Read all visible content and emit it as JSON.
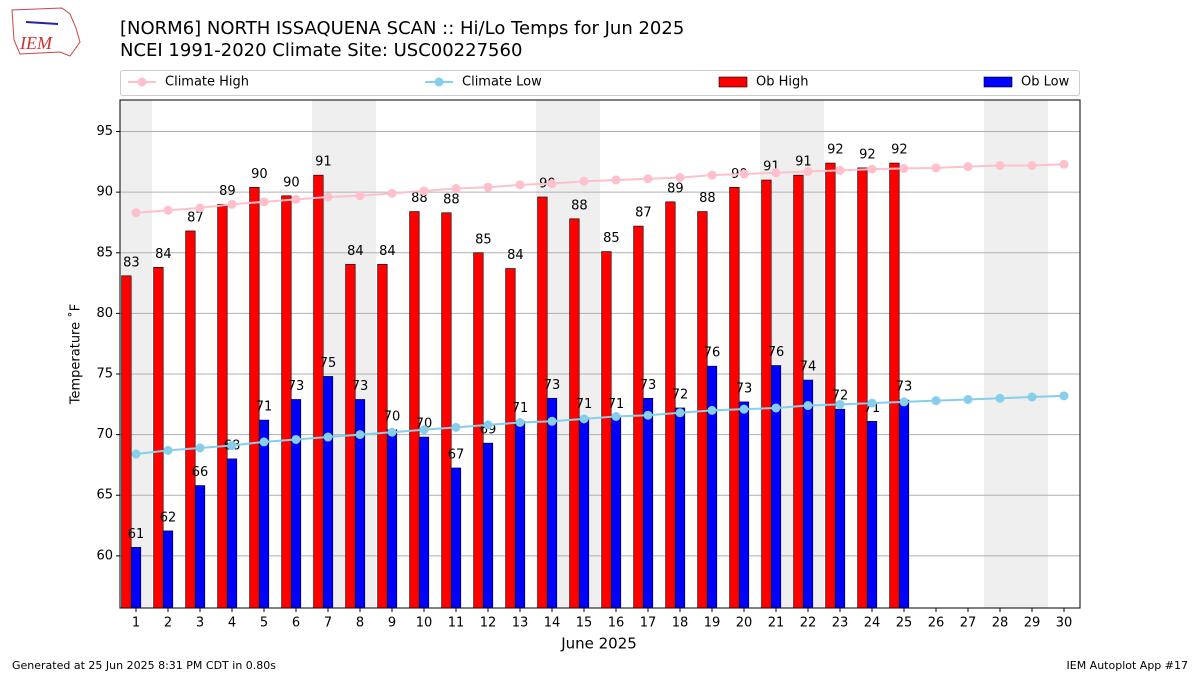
{
  "logo": "IEM",
  "footer": {
    "left": "Generated at 25 Jun 2025 8:31 PM CDT in 0.80s",
    "right": "IEM Autoplot App #17"
  },
  "chart_data": {
    "type": "bar",
    "title": "[NORM6] NORTH ISSAQUENA SCAN :: Hi/Lo Temps for Jun 2025",
    "subtitle": "NCEI 1991-2020 Climate Site: USC00227560",
    "x_label": "June 2025",
    "y_label": "Temperature ˚F",
    "categories": [
      "1",
      "2",
      "3",
      "4",
      "5",
      "6",
      "7",
      "8",
      "9",
      "10",
      "11",
      "12",
      "13",
      "14",
      "15",
      "16",
      "17",
      "18",
      "19",
      "20",
      "21",
      "22",
      "23",
      "24",
      "25",
      "26",
      "27",
      "28",
      "29",
      "30"
    ],
    "shaded_categories": [
      0,
      6,
      7,
      13,
      14,
      20,
      21,
      27,
      28
    ],
    "shade_color": "#efefef",
    "ylim": [
      55.7,
      97.6
    ],
    "yticks": [
      60,
      65,
      70,
      75,
      80,
      85,
      90,
      95
    ],
    "grid": true,
    "series": [
      {
        "name": "Climate High",
        "type": "line",
        "color": "#ffc0cb",
        "values": [
          88.3,
          88.5,
          88.7,
          89.0,
          89.2,
          89.4,
          89.6,
          89.7,
          89.9,
          90.1,
          90.3,
          90.4,
          90.6,
          90.7,
          90.9,
          91.0,
          91.1,
          91.2,
          91.4,
          91.5,
          91.6,
          91.7,
          91.8,
          91.9,
          91.95,
          92.0,
          92.1,
          92.2,
          92.2,
          92.3
        ]
      },
      {
        "name": "Climate Low",
        "type": "line",
        "color": "#87ceeb",
        "values": [
          68.4,
          68.7,
          68.9,
          69.1,
          69.4,
          69.6,
          69.8,
          70.0,
          70.2,
          70.4,
          70.6,
          70.8,
          71.0,
          71.1,
          71.3,
          71.5,
          71.6,
          71.8,
          72.0,
          72.1,
          72.2,
          72.4,
          72.5,
          72.6,
          72.7,
          72.8,
          72.9,
          73.0,
          73.1,
          73.2
        ]
      },
      {
        "name": "Ob High",
        "type": "bar",
        "color": "#ff0000",
        "values": [
          83.1,
          83.8,
          86.8,
          89.0,
          90.4,
          89.7,
          91.4,
          84.05,
          84.05,
          88.4,
          88.3,
          85.0,
          83.7,
          89.6,
          87.8,
          85.1,
          87.2,
          89.2,
          88.4,
          90.4,
          91.0,
          91.4,
          92.4,
          92.0,
          92.4,
          null,
          null,
          null,
          null,
          null
        ],
        "value_labels": [
          "83",
          "84",
          "87",
          "89",
          "90",
          "90",
          "91",
          "84",
          "84",
          "88",
          "88",
          "85",
          "84",
          "90",
          "88",
          "85",
          "87",
          "89",
          "88",
          "90",
          "91",
          "91",
          "92",
          "92",
          "92",
          null,
          null,
          null,
          null,
          null
        ]
      },
      {
        "name": "Ob Low",
        "type": "bar",
        "color": "#0000ff",
        "values": [
          60.7,
          62.06,
          65.8,
          68.0,
          71.2,
          72.9,
          74.8,
          72.9,
          70.4,
          69.8,
          67.25,
          69.3,
          71.1,
          73.0,
          71.4,
          71.4,
          73.0,
          72.2,
          75.65,
          72.7,
          75.7,
          74.5,
          72.1,
          71.1,
          72.85,
          null,
          null,
          null,
          null,
          null
        ],
        "value_labels": [
          "61",
          "62",
          "66",
          "68",
          "71",
          "73",
          "75",
          "73",
          "70",
          "70",
          "67",
          "69",
          "71",
          "73",
          "71",
          "71",
          "73",
          "72",
          "76",
          "73",
          "76",
          "74",
          "72",
          "71",
          "73",
          null,
          null,
          null,
          null,
          null
        ]
      }
    ]
  }
}
